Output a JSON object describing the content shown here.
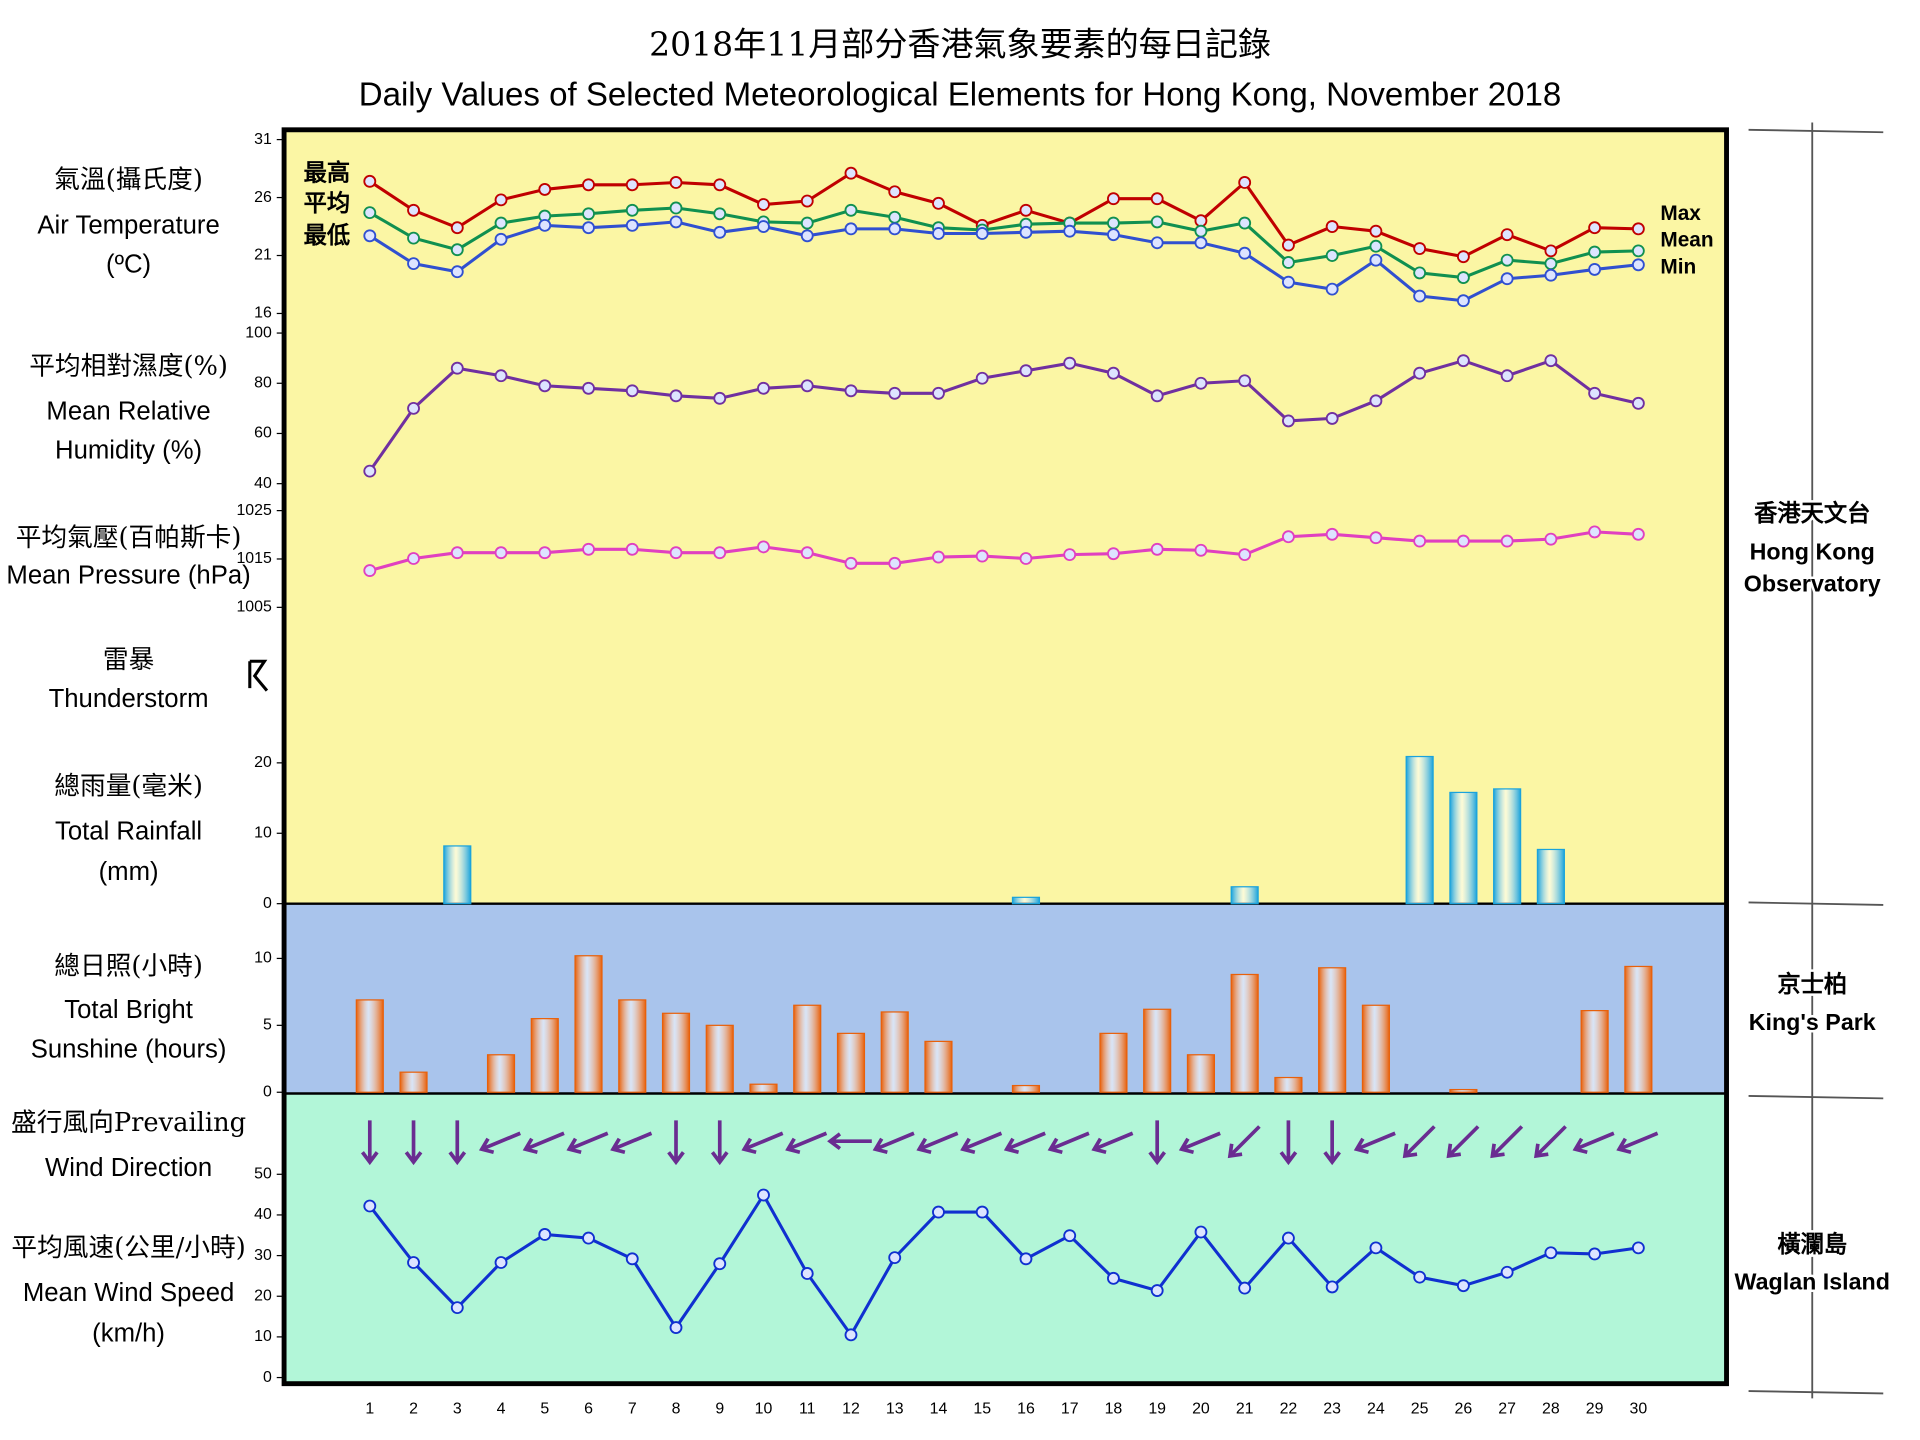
{
  "title_zh": "2018年11月部分香港氣象要素的每日記錄",
  "title_en": "Daily Values of Selected Meteorological Elements for Hong Kong, November 2018",
  "stations": [
    {
      "zh": "香港天文台",
      "en": [
        "Hong Kong",
        "Observatory"
      ]
    },
    {
      "zh": "京士柏",
      "en": [
        "King's Park"
      ]
    },
    {
      "zh": "橫瀾島",
      "en": [
        "Waglan Island"
      ]
    }
  ],
  "chart_data": [
    {
      "type": "line",
      "label": [
        "氣溫(攝氏度)",
        "Air Temperature",
        "(ºC)"
      ],
      "ylim": [
        16,
        31
      ],
      "yticks": [
        16,
        21,
        26,
        31
      ],
      "series": [
        {
          "name": "Max",
          "name_zh": "最高",
          "color": "#c00000",
          "values": [
            27.4,
            24.9,
            23.4,
            25.8,
            26.7,
            27.1,
            27.1,
            27.3,
            27.1,
            25.4,
            25.7,
            28.1,
            26.5,
            25.5,
            23.6,
            24.9,
            23.8,
            25.9,
            25.9,
            24.0,
            27.3,
            21.9,
            23.5,
            23.1,
            21.6,
            20.9,
            22.8,
            21.4,
            23.4,
            23.3
          ]
        },
        {
          "name": "Mean",
          "name_zh": "平均",
          "color": "#109050",
          "values": [
            24.7,
            22.5,
            21.5,
            23.8,
            24.4,
            24.6,
            24.9,
            25.1,
            24.6,
            23.9,
            23.8,
            24.9,
            24.3,
            23.4,
            23.2,
            23.7,
            23.8,
            23.8,
            23.9,
            23.1,
            23.8,
            20.4,
            21.0,
            21.8,
            19.5,
            19.1,
            20.6,
            20.3,
            21.3,
            21.4
          ]
        },
        {
          "name": "Min",
          "name_zh": "最低",
          "color": "#3050d0",
          "values": [
            22.7,
            20.3,
            19.6,
            22.4,
            23.6,
            23.4,
            23.6,
            23.9,
            23.0,
            23.5,
            22.7,
            23.3,
            23.3,
            22.9,
            22.9,
            23.0,
            23.1,
            22.8,
            22.1,
            22.1,
            21.2,
            18.7,
            18.1,
            20.6,
            17.5,
            17.1,
            19.0,
            19.3,
            19.8,
            20.2
          ]
        }
      ]
    },
    {
      "type": "line",
      "label": [
        "平均相對濕度(%)",
        "Mean Relative",
        "Humidity (%)"
      ],
      "ylim": [
        40,
        100
      ],
      "yticks": [
        40,
        60,
        80,
        100
      ],
      "color": "#7030a0",
      "values": [
        45,
        70,
        86,
        83,
        79,
        78,
        77,
        75,
        74,
        78,
        79,
        77,
        76,
        76,
        82,
        85,
        88,
        84,
        75,
        80,
        81,
        65,
        66,
        73,
        84,
        89,
        83,
        89,
        76,
        72
      ]
    },
    {
      "type": "line",
      "label": [
        "平均氣壓(百帕斯卡)",
        "Mean Pressure (hPa)"
      ],
      "ylim": [
        1005,
        1025
      ],
      "yticks": [
        1005,
        1015,
        1025
      ],
      "color": "#e040c0",
      "values": [
        1012.6,
        1015.1,
        1016.3,
        1016.3,
        1016.3,
        1017.0,
        1017.0,
        1016.3,
        1016.3,
        1017.5,
        1016.3,
        1014.1,
        1014.1,
        1015.4,
        1015.6,
        1015.1,
        1015.9,
        1016.1,
        1017.0,
        1016.8,
        1015.9,
        1019.6,
        1020.1,
        1019.4,
        1018.7,
        1018.7,
        1018.7,
        1019.1,
        1020.6,
        1020.1
      ]
    },
    {
      "type": "symbol",
      "label": [
        "雷暴",
        "Thunderstorm"
      ]
    },
    {
      "type": "bar",
      "label": [
        "總雨量(毫米)",
        "Total Rainfall",
        "(mm)"
      ],
      "ylim": [
        0,
        24
      ],
      "yticks": [
        0,
        10,
        20
      ],
      "color": "#1aa3dc",
      "values": [
        0,
        0,
        8.2,
        0,
        0,
        0,
        0,
        0,
        0,
        0,
        0,
        0,
        0,
        0,
        0,
        0.9,
        0,
        0,
        0,
        0,
        2.4,
        0,
        0,
        0,
        20.9,
        15.8,
        16.3,
        7.7,
        0,
        0
      ]
    },
    {
      "type": "bar",
      "label": [
        "總日照(小時)",
        "Total Bright",
        "Sunshine (hours)"
      ],
      "ylim": [
        0,
        14
      ],
      "yticks": [
        0,
        5,
        10
      ],
      "color": "#e8600a",
      "values": [
        6.9,
        1.5,
        0,
        2.8,
        5.5,
        10.2,
        6.9,
        5.9,
        5.0,
        0.6,
        6.5,
        4.4,
        6.0,
        3.8,
        0,
        0.5,
        0,
        4.4,
        6.2,
        2.8,
        8.8,
        1.1,
        9.3,
        6.5,
        0,
        0.2,
        0,
        0,
        6.1,
        9.4
      ]
    },
    {
      "type": "arrow",
      "label": [
        "盛行風向Prevailing",
        "Wind Direction"
      ],
      "color": "#6a2c91",
      "values": [
        0,
        0,
        0,
        67.5,
        67.5,
        67.5,
        67.5,
        0,
        0,
        67.5,
        67.5,
        90,
        67.5,
        67.5,
        67.5,
        67.5,
        67.5,
        67.5,
        0,
        67.5,
        45,
        0,
        0,
        67.5,
        45,
        45,
        45,
        45,
        67.5,
        67.5
      ]
    },
    {
      "type": "line",
      "label": [
        "平均風速(公里/小時)",
        "Mean Wind Speed",
        "(km/h)"
      ],
      "ylim": [
        0,
        50
      ],
      "yticks": [
        0,
        10,
        20,
        30,
        40,
        50
      ],
      "color": "#1030d0",
      "categories": [
        "1",
        "2",
        "3",
        "4",
        "5",
        "6",
        "7",
        "8",
        "9",
        "10",
        "11",
        "12",
        "13",
        "14",
        "15",
        "16",
        "17",
        "18",
        "19",
        "20",
        "21",
        "22",
        "23",
        "24",
        "25",
        "26",
        "27",
        "28",
        "29",
        "30"
      ],
      "values": [
        42.2,
        28.3,
        17.2,
        28.3,
        35.2,
        34.3,
        29.2,
        12.3,
        28.0,
        44.9,
        25.6,
        10.5,
        29.5,
        40.7,
        40.7,
        29.2,
        34.9,
        24.4,
        21.4,
        35.8,
        22.0,
        34.3,
        22.3,
        31.9,
        24.7,
        22.6,
        25.9,
        30.7,
        30.4,
        31.9
      ]
    }
  ]
}
